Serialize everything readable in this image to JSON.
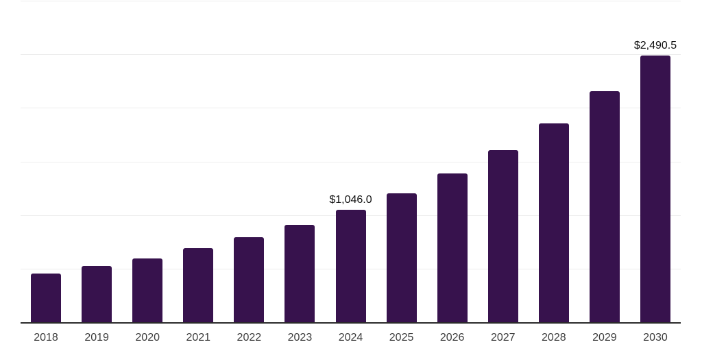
{
  "chart_data": {
    "type": "bar",
    "categories": [
      "2018",
      "2019",
      "2020",
      "2021",
      "2022",
      "2023",
      "2024",
      "2025",
      "2026",
      "2027",
      "2028",
      "2029",
      "2030"
    ],
    "values": [
      455,
      525,
      597,
      690,
      792,
      908,
      1046.0,
      1202,
      1388,
      1605,
      1855,
      2155,
      2490.5
    ],
    "value_labels": {
      "2024": "$1,046.0",
      "2030": "$2,490.5"
    },
    "ylim": [
      0,
      3000
    ],
    "gridline_step": 500,
    "grid": true,
    "legend_position": "none",
    "colors": {
      "bar": "#37124d",
      "axis_line": "#2b2b2b",
      "gridline": "#ededed",
      "value_label": "#111111",
      "tick_label": "#3d3d3d",
      "background": "#ffffff"
    }
  }
}
